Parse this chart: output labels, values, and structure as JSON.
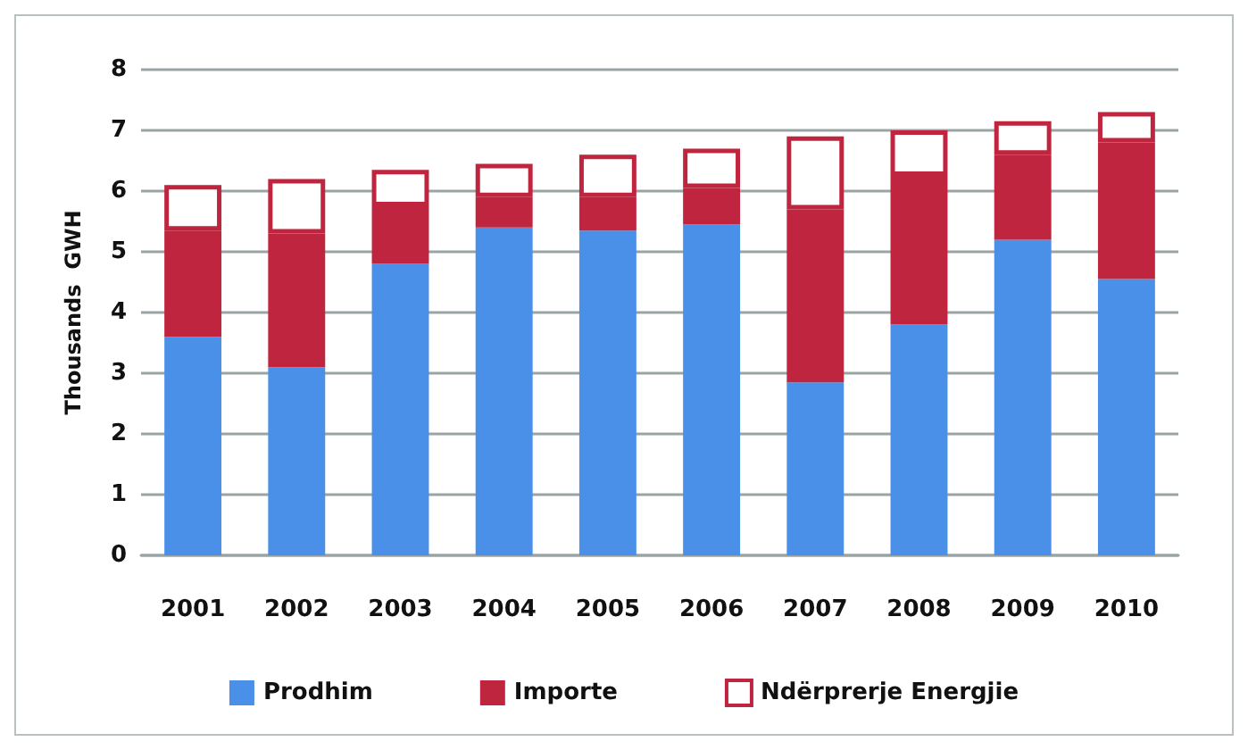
{
  "chart_data": {
    "type": "bar",
    "stacked": true,
    "ylabel": "Thousands  GWH",
    "categories": [
      "2001",
      "2002",
      "2003",
      "2004",
      "2005",
      "2006",
      "2007",
      "2008",
      "2009",
      "2010"
    ],
    "series": [
      {
        "name": "Prodhim",
        "color": "#4a90e8",
        "values": [
          3.6,
          3.1,
          4.8,
          5.4,
          5.35,
          5.45,
          2.85,
          3.8,
          5.2,
          4.55
        ]
      },
      {
        "name": "Importe",
        "color": "#c0253f",
        "values": [
          1.75,
          2.2,
          0.95,
          0.5,
          0.55,
          0.6,
          2.85,
          2.45,
          1.4,
          2.25
        ]
      },
      {
        "name": "Ndërprerje Energjie",
        "color": "#c0253f",
        "values": [
          0.75,
          0.9,
          0.6,
          0.55,
          0.7,
          0.65,
          1.2,
          0.75,
          0.55,
          0.5
        ]
      }
    ],
    "ylim": [
      0,
      8
    ],
    "yticks": [
      0,
      1,
      2,
      3,
      4,
      5,
      6,
      7,
      8
    ],
    "grid": "y",
    "legend": "bottom"
  }
}
